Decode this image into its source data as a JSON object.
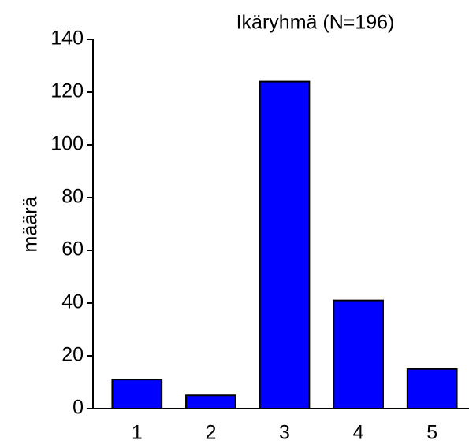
{
  "chart_data": {
    "type": "bar",
    "title": "Ikäryhmä (N=196)",
    "y_label": "määrä",
    "categories": [
      "1",
      "2",
      "3",
      "4",
      "5"
    ],
    "values": [
      11,
      5,
      124,
      41,
      15
    ],
    "color": "#0000ff",
    "ylim": [
      0,
      140
    ],
    "yticks": [
      0,
      20,
      40,
      60,
      80,
      100,
      120,
      140
    ],
    "grid": false
  }
}
